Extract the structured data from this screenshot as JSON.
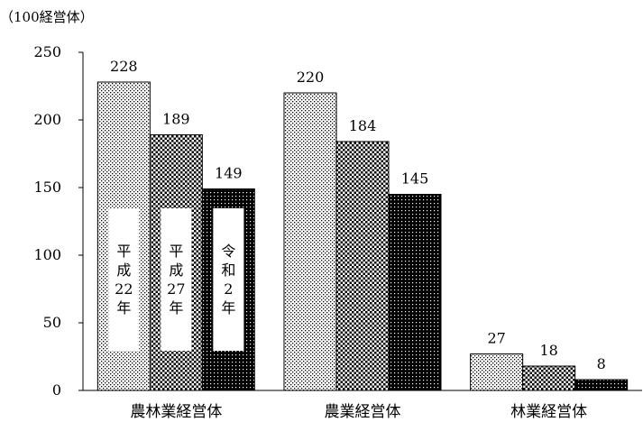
{
  "chart_data": {
    "type": "bar",
    "unit_label": "（100経営体）",
    "categories": [
      "農林業経営体",
      "農業経営体",
      "林業経営体"
    ],
    "series": [
      {
        "name": "平成22年",
        "label_lines": [
          "平",
          "成",
          "22",
          "年"
        ],
        "values": [
          228,
          220,
          27
        ]
      },
      {
        "name": "平成27年",
        "label_lines": [
          "平",
          "成",
          "27",
          "年"
        ],
        "values": [
          189,
          184,
          18
        ]
      },
      {
        "name": "令和2年",
        "label_lines": [
          "令",
          "和",
          "2",
          "年"
        ],
        "values": [
          149,
          145,
          8
        ]
      }
    ],
    "yticks": [
      0,
      50,
      100,
      150,
      200,
      250
    ],
    "ylim": [
      0,
      250
    ],
    "grid": false
  }
}
